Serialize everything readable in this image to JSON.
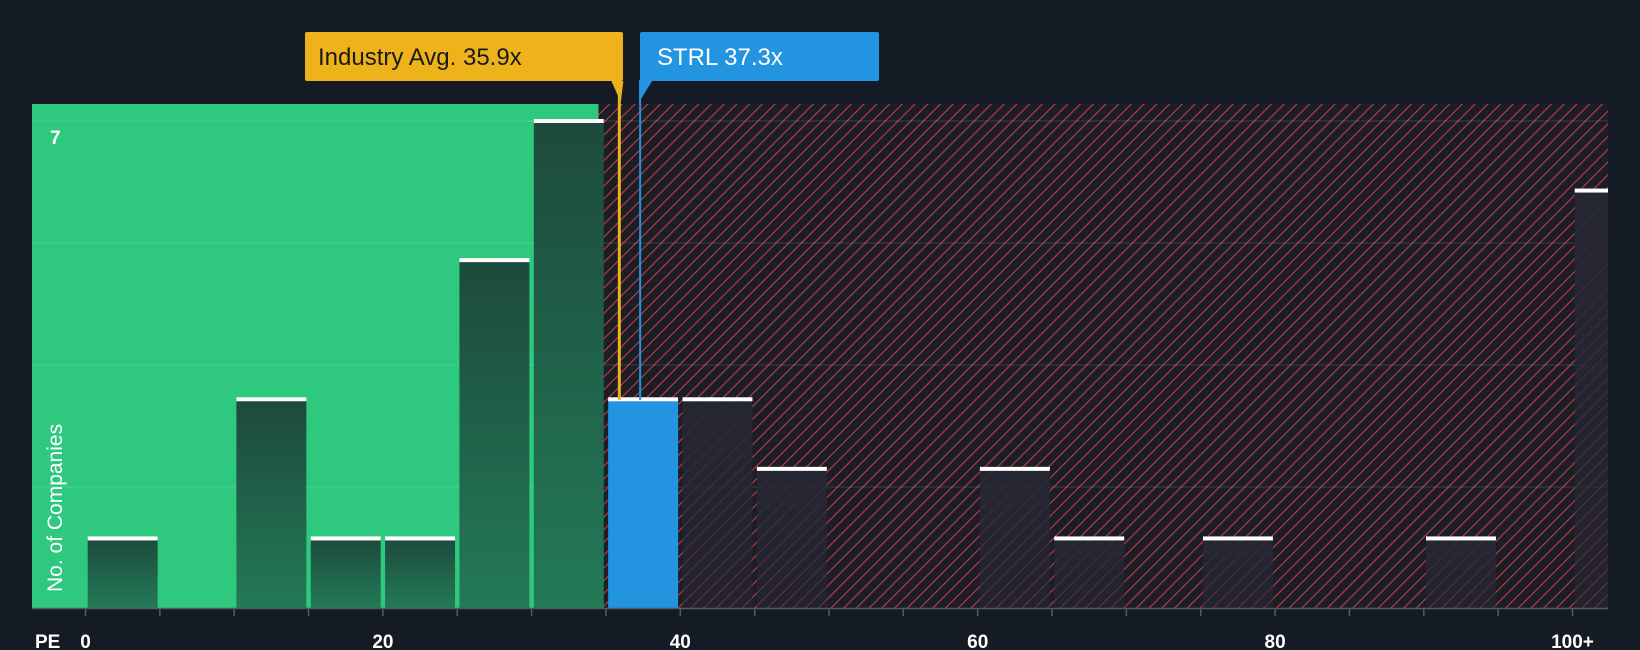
{
  "chart_data": {
    "type": "bar",
    "xlabel": "PE",
    "ylabel": "No. of Companies",
    "x_ticks": [
      "0",
      "20",
      "40",
      "60",
      "80",
      "100+"
    ],
    "y_ticks": [
      "7"
    ],
    "xlim": [
      -3.5,
      102.5
    ],
    "ylim": [
      0,
      7.25
    ],
    "bin_width": 5,
    "bins": [
      {
        "start": 0,
        "value": 1
      },
      {
        "start": 5,
        "value": 0
      },
      {
        "start": 10,
        "value": 3
      },
      {
        "start": 15,
        "value": 1
      },
      {
        "start": 20,
        "value": 1
      },
      {
        "start": 25,
        "value": 5
      },
      {
        "start": 30,
        "value": 7
      },
      {
        "start": 35,
        "value": 3
      },
      {
        "start": 40,
        "value": 3
      },
      {
        "start": 45,
        "value": 2
      },
      {
        "start": 50,
        "value": 0
      },
      {
        "start": 55,
        "value": 0
      },
      {
        "start": 60,
        "value": 2
      },
      {
        "start": 65,
        "value": 1
      },
      {
        "start": 70,
        "value": 0
      },
      {
        "start": 75,
        "value": 1
      },
      {
        "start": 80,
        "value": 0
      },
      {
        "start": 85,
        "value": 0
      },
      {
        "start": 90,
        "value": 1
      },
      {
        "start": 95,
        "value": 0
      },
      {
        "start": 100,
        "value": 6
      }
    ],
    "highlight_bin_start": 35,
    "fair_zone_end": 34.5,
    "industry_avg": {
      "label": "Industry Avg. 35.9x",
      "value": 35.9
    },
    "company": {
      "label": "STRL 37.3x",
      "value": 37.3
    },
    "colors": {
      "background": "#151b24",
      "fair_zone": "#2ec97e",
      "bar_in_fair": "#1f5f45",
      "bar_expensive": "#262833",
      "highlight": "#2394e0",
      "hatch": "#c63c44",
      "industry": "#eeb31a",
      "cap": "#ffffff"
    }
  }
}
